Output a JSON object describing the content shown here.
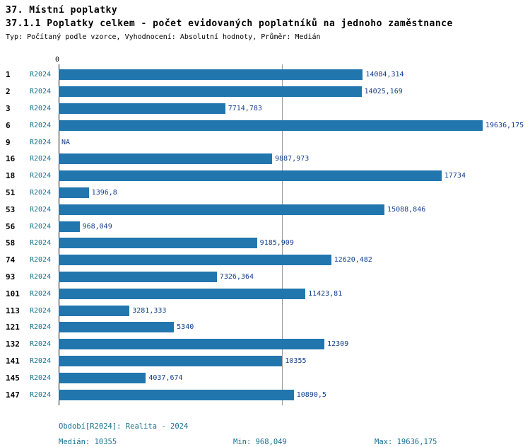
{
  "header": {
    "title": "37. Místní poplatky",
    "subtitle": "37.1.1 Poplatky celkem - počet evidovaných poplatníků na jednoho zaměstnance",
    "meta": "Typ: Počítaný podle vzorce, Vyhodnocení: Absolutní hodnoty, Průměr: Medián"
  },
  "chart_data": {
    "type": "bar",
    "orientation": "horizontal",
    "title": "37. Místní poplatky",
    "subtitle": "37.1.1 Poplatky celkem - počet evidovaných poplatníků na jednoho zaměstnance",
    "series_label": "R2024",
    "x_axis": {
      "zero_label": "0",
      "min": 0,
      "max": 19636.175
    },
    "median_value": 10355,
    "grid": "median-line-only",
    "colors": {
      "bar": "#2176ae",
      "teal_text": "#17718f",
      "value_text": "#123f8c",
      "median_line": "#9a9a9a"
    },
    "rows": [
      {
        "id": "1",
        "period": "R2024",
        "value": 14084.314,
        "label": "14084,314"
      },
      {
        "id": "2",
        "period": "R2024",
        "value": 14025.169,
        "label": "14025,169"
      },
      {
        "id": "3",
        "period": "R2024",
        "value": 7714.783,
        "label": "7714,783"
      },
      {
        "id": "6",
        "period": "R2024",
        "value": 19636.175,
        "label": "19636,175"
      },
      {
        "id": "9",
        "period": "R2024",
        "value": null,
        "label": "NA"
      },
      {
        "id": "16",
        "period": "R2024",
        "value": 9887.973,
        "label": "9887,973"
      },
      {
        "id": "18",
        "period": "R2024",
        "value": 17734,
        "label": "17734"
      },
      {
        "id": "51",
        "period": "R2024",
        "value": 1396.8,
        "label": "1396,8"
      },
      {
        "id": "53",
        "period": "R2024",
        "value": 15088.846,
        "label": "15088,846"
      },
      {
        "id": "56",
        "period": "R2024",
        "value": 968.049,
        "label": "968,049"
      },
      {
        "id": "58",
        "period": "R2024",
        "value": 9185.909,
        "label": "9185,909"
      },
      {
        "id": "74",
        "period": "R2024",
        "value": 12620.482,
        "label": "12620,482"
      },
      {
        "id": "93",
        "period": "R2024",
        "value": 7326.364,
        "label": "7326,364"
      },
      {
        "id": "101",
        "period": "R2024",
        "value": 11423.81,
        "label": "11423,81"
      },
      {
        "id": "113",
        "period": "R2024",
        "value": 3281.333,
        "label": "3281,333"
      },
      {
        "id": "121",
        "period": "R2024",
        "value": 5340,
        "label": "5340"
      },
      {
        "id": "132",
        "period": "R2024",
        "value": 12309,
        "label": "12309"
      },
      {
        "id": "141",
        "period": "R2024",
        "value": 10355,
        "label": "10355"
      },
      {
        "id": "145",
        "period": "R2024",
        "value": 4037.674,
        "label": "4037,674"
      },
      {
        "id": "147",
        "period": "R2024",
        "value": 10890.5,
        "label": "10890,5"
      }
    ]
  },
  "footer": {
    "period": "Období[R2024]: Realita - 2024",
    "median": "Medián: 10355",
    "min": "Min: 968,049",
    "max": "Max: 19636,175"
  }
}
